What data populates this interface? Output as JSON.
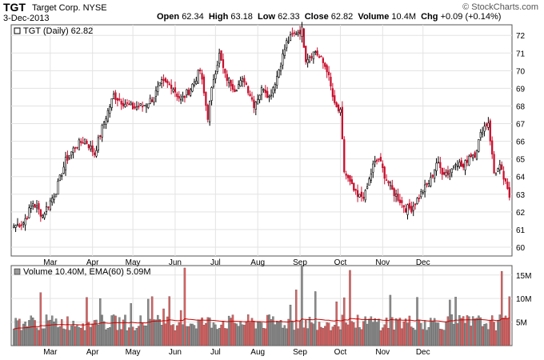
{
  "header": {
    "ticker": "TGT",
    "company": "Target Corp.",
    "exchange": "NYSE",
    "date": "3-Dec-2013",
    "open_label": "Open",
    "open": "62.34",
    "high_label": "High",
    "high": "63.18",
    "low_label": "Low",
    "low": "62.33",
    "close_label": "Close",
    "close": "62.82",
    "volume_label": "Volume",
    "volume": "10.4M",
    "chg_label": "Chg",
    "chg": "+0.09 (+0.14%)",
    "copyright": "© StockCharts.com"
  },
  "colors": {
    "up": "#000000",
    "down": "#c8102e",
    "ema": "#cc0000",
    "grid": "#e3e3e3",
    "vol_up": "#8c8c8c",
    "vol_down": "#e06060"
  },
  "chart_data": [
    {
      "type": "candlestick",
      "legend": "TGT (Daily) 62.82",
      "ylim": [
        59.5,
        72.6
      ],
      "y_ticks": [
        60,
        61,
        62,
        63,
        64,
        65,
        66,
        67,
        68,
        69,
        70,
        71,
        72
      ],
      "x_ticks": [
        "Mar",
        "Apr",
        "May",
        "Jun",
        "Jul",
        "Aug",
        "Sep",
        "Oct",
        "Nov",
        "Dec"
      ],
      "close_path": [
        [
          0,
          61.2
        ],
        [
          5,
          61.4
        ],
        [
          10,
          62.5
        ],
        [
          15,
          61.8
        ],
        [
          22,
          63.2
        ],
        [
          27,
          64.9
        ],
        [
          32,
          65.7
        ],
        [
          37,
          66.1
        ],
        [
          42,
          65.3
        ],
        [
          47,
          67.1
        ],
        [
          52,
          68.6
        ],
        [
          57,
          68.2
        ],
        [
          62,
          67.9
        ],
        [
          67,
          68.0
        ],
        [
          72,
          68.4
        ],
        [
          77,
          69.3
        ],
        [
          82,
          69.2
        ],
        [
          87,
          68.3
        ],
        [
          92,
          69.0
        ],
        [
          97,
          70.0
        ],
        [
          101,
          67.4
        ],
        [
          104,
          69.6
        ],
        [
          107,
          70.9
        ],
        [
          110,
          69.7
        ],
        [
          115,
          69.0
        ],
        [
          120,
          69.5
        ],
        [
          125,
          68.1
        ],
        [
          130,
          69.1
        ],
        [
          133,
          68.5
        ],
        [
          137,
          69.7
        ],
        [
          142,
          71.6
        ],
        [
          147,
          72.2
        ],
        [
          150,
          72.3
        ],
        [
          152,
          70.7
        ],
        [
          157,
          71.1
        ],
        [
          160,
          70.6
        ],
        [
          163,
          70.1
        ],
        [
          167,
          68.0
        ],
        [
          170,
          67.6
        ],
        [
          172,
          64.3
        ],
        [
          175,
          63.6
        ],
        [
          179,
          62.8
        ],
        [
          183,
          63.0
        ],
        [
          187,
          64.6
        ],
        [
          190,
          65.0
        ],
        [
          193,
          64.1
        ],
        [
          197,
          63.2
        ],
        [
          200,
          62.8
        ],
        [
          204,
          62.2
        ],
        [
          207,
          62.2
        ],
        [
          210,
          62.7
        ],
        [
          213,
          63.2
        ],
        [
          217,
          63.8
        ],
        [
          220,
          64.8
        ],
        [
          223,
          64.3
        ],
        [
          227,
          64.2
        ],
        [
          230,
          64.9
        ],
        [
          234,
          64.5
        ],
        [
          237,
          65.2
        ],
        [
          240,
          65.3
        ],
        [
          244,
          66.7
        ],
        [
          247,
          67.1
        ],
        [
          250,
          64.2
        ],
        [
          253,
          64.5
        ],
        [
          255,
          63.9
        ],
        [
          258,
          62.82
        ]
      ],
      "volume": {
        "legend": "Volume 10.40M, EMA(60) 5.09M",
        "ylim": [
          0,
          17
        ],
        "y_ticks": [
          5,
          10,
          15
        ],
        "y_tick_labels": [
          "5M",
          "10M",
          "15M"
        ],
        "ema_end": 5.09,
        "last": 10.4,
        "spikes": [
          [
            89,
            16.5
          ],
          [
            150,
            17.0
          ],
          [
            175,
            16.0
          ],
          [
            254,
            15.8
          ],
          [
            258,
            10.4
          ]
        ]
      }
    }
  ]
}
